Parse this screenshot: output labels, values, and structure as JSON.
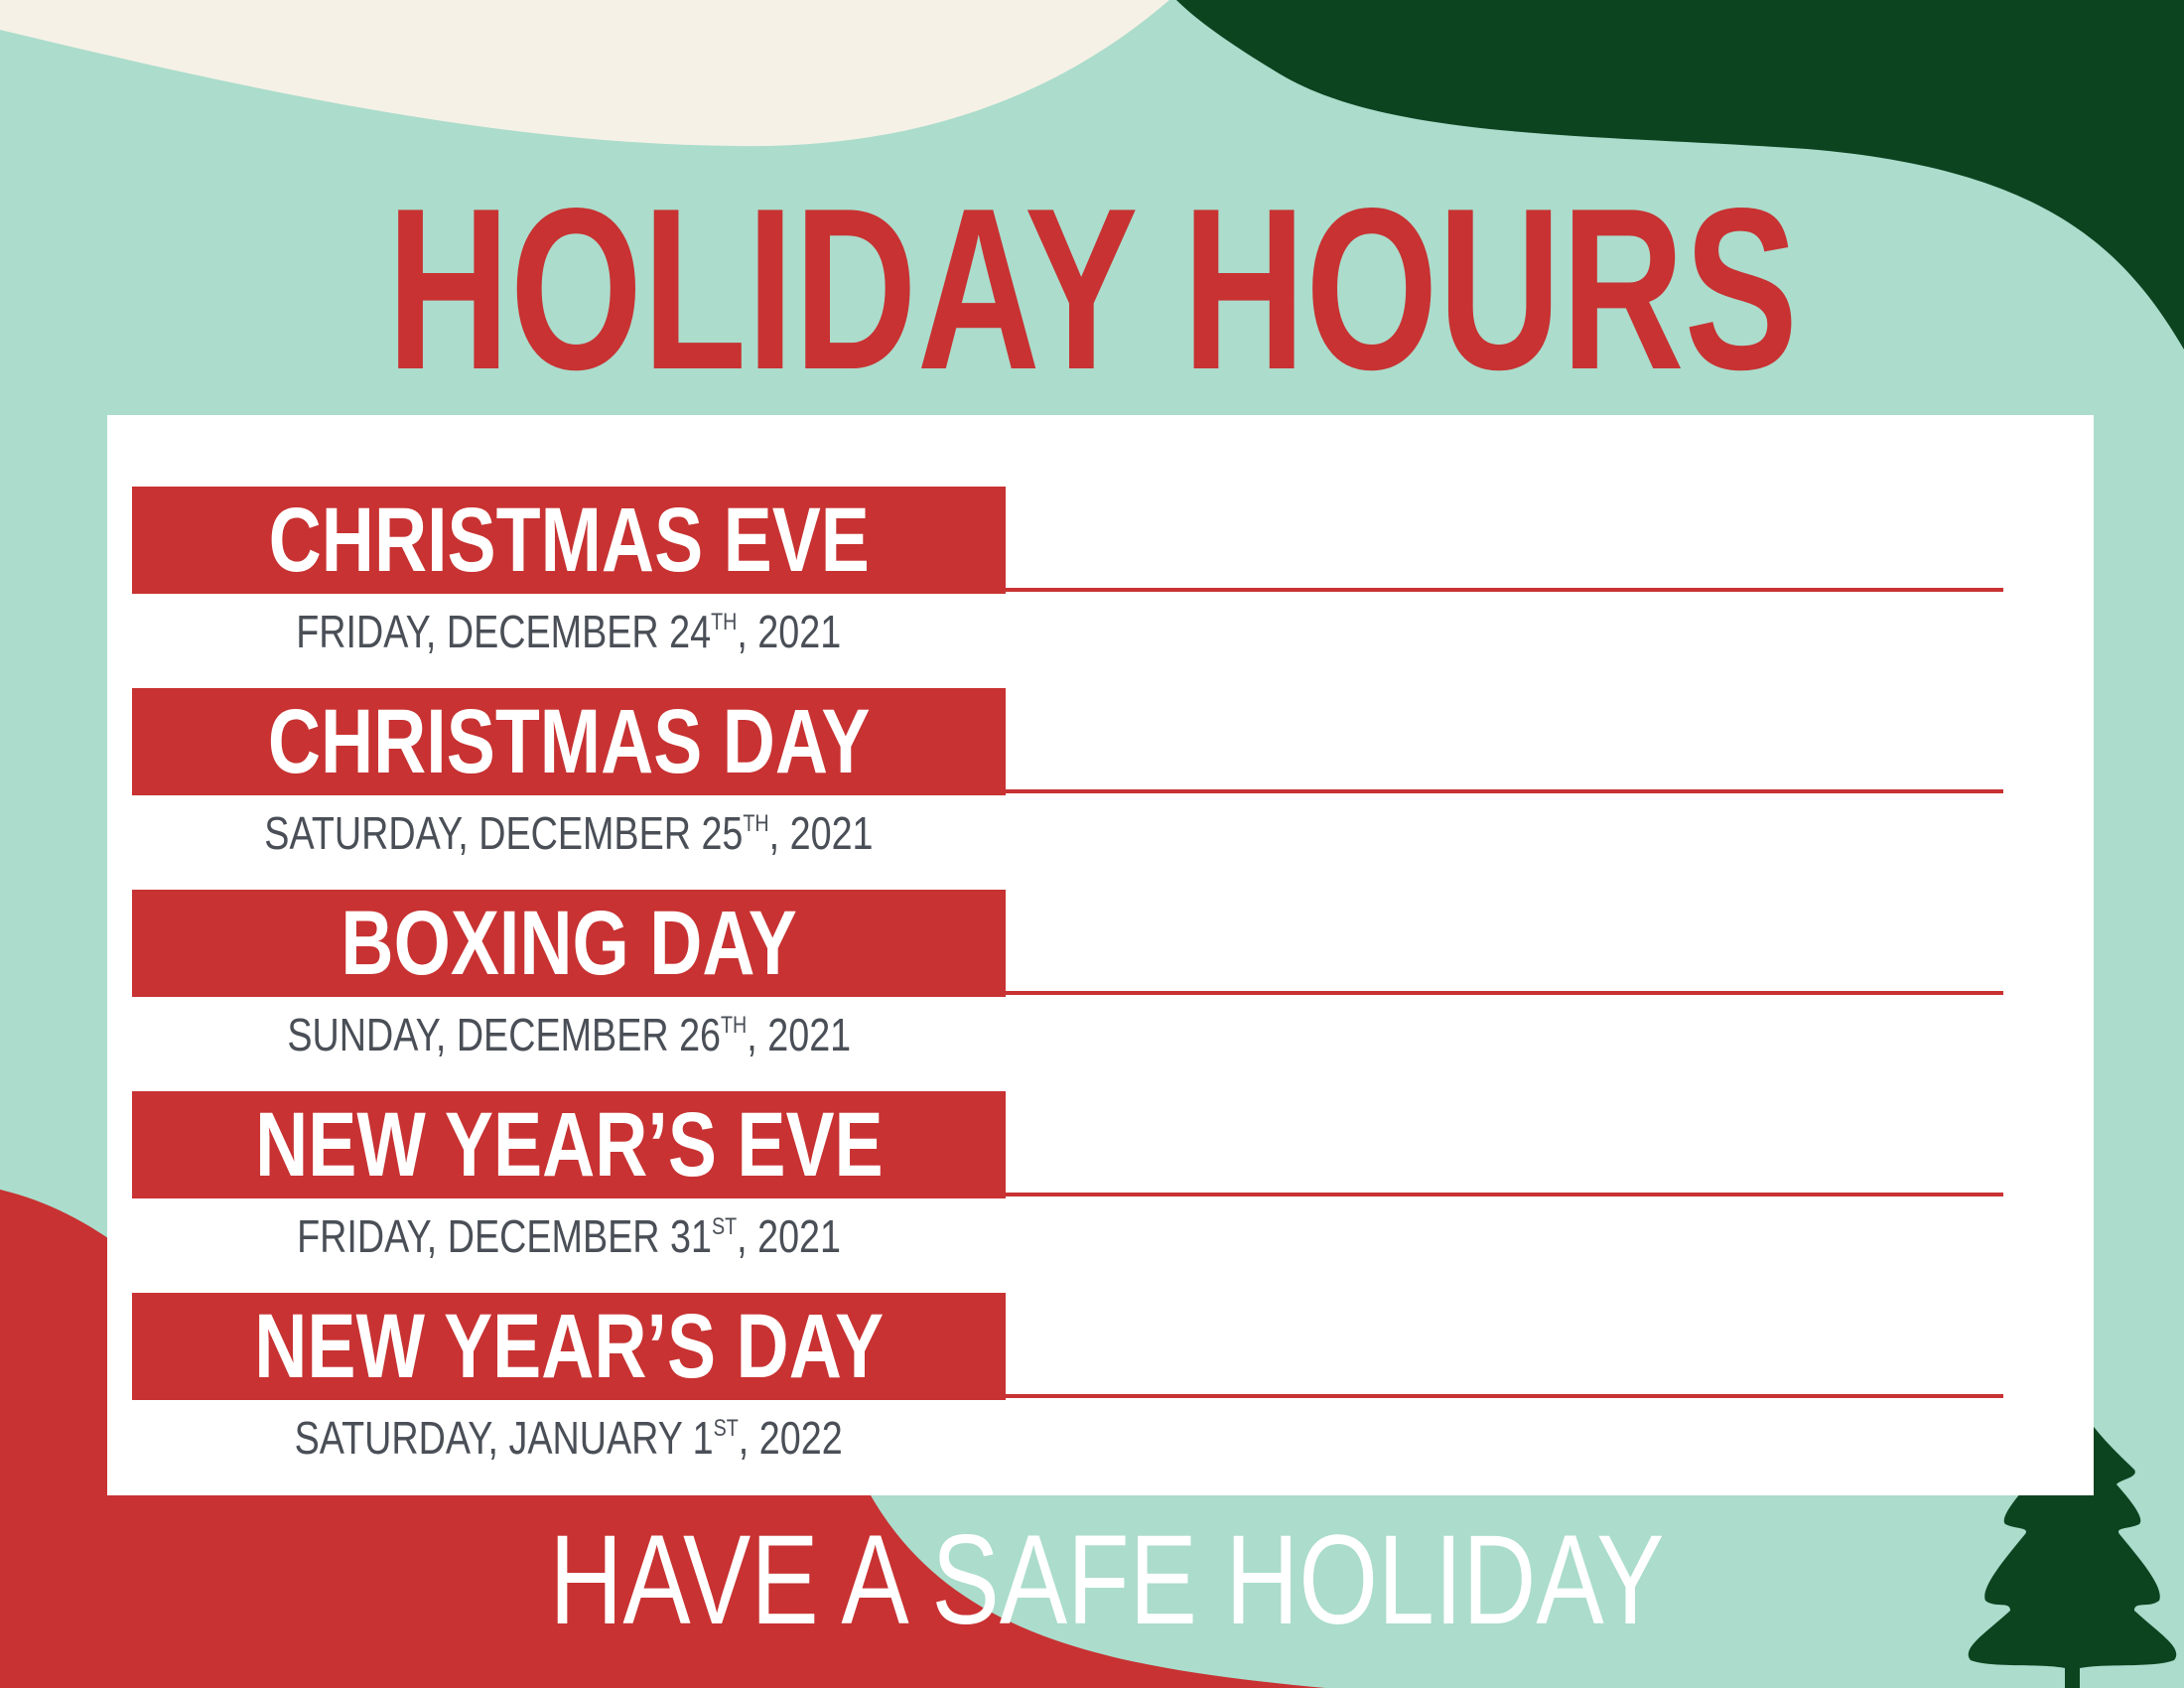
{
  "title": "HOLIDAY HOURS",
  "holidays": [
    {
      "name": "CHRISTMAS EVE",
      "date": "FRIDAY, DECEMBER 24",
      "suffix": "TH",
      "year": ", 2021"
    },
    {
      "name": "CHRISTMAS DAY",
      "date": "SATURDAY, DECEMBER 25",
      "suffix": "TH",
      "year": ", 2021"
    },
    {
      "name": "BOXING DAY",
      "date": "SUNDAY, DECEMBER 26",
      "suffix": "TH",
      "year": ", 2021"
    },
    {
      "name": "NEW YEAR’S EVE",
      "date": "FRIDAY, DECEMBER 31",
      "suffix": "ST",
      "year": ", 2021"
    },
    {
      "name": "NEW YEAR’S DAY",
      "date": "SATURDAY, JANUARY 1",
      "suffix": "ST",
      "year": ", 2022"
    }
  ],
  "footer": "HAVE A SAFE HOLIDAY",
  "colors": {
    "mint": "#abdccc",
    "cream": "#f5f1e6",
    "dark_green": "#0d4420",
    "red": "#c83232",
    "date_text": "#4a4f57"
  },
  "icons": [
    "christmas-tree-icon"
  ]
}
